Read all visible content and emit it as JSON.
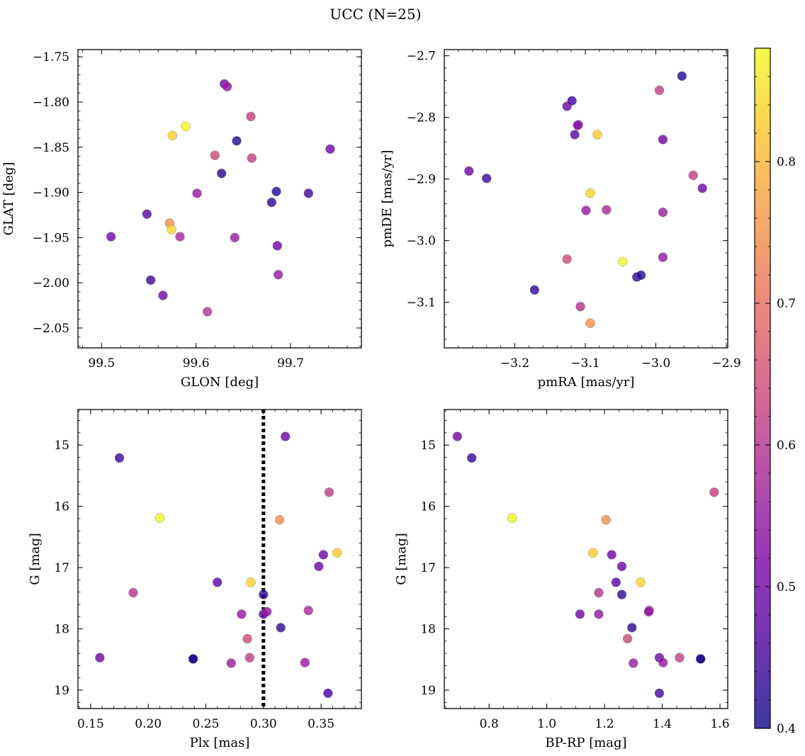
{
  "figure": {
    "title": "UCC (N=25)",
    "colormap": "plasma",
    "point_alpha": 0.8,
    "point_edge_color": "#888888"
  },
  "colorbar": {
    "range": [
      0.4,
      0.88
    ],
    "ticks": [
      0.4,
      0.5,
      0.6,
      0.7,
      0.8
    ],
    "tick_labels": [
      "0.4",
      "0.5",
      "0.6",
      "0.7",
      "0.8"
    ]
  },
  "stars": [
    {
      "glon": 99.51,
      "glat": -1.949,
      "pmra": -3.265,
      "pmde": -2.887,
      "plx": 0.158,
      "g": 18.47,
      "bprp": 1.39,
      "prob": 0.5
    },
    {
      "glon": 99.548,
      "glat": -1.924,
      "pmra": -3.115,
      "pmde": -2.828,
      "plx": 0.26,
      "g": 17.24,
      "bprp": 1.24,
      "prob": 0.47
    },
    {
      "glon": 99.552,
      "glat": -1.997,
      "pmra": -3.24,
      "pmde": -2.899,
      "plx": 0.175,
      "g": 15.21,
      "bprp": 0.74,
      "prob": 0.44
    },
    {
      "glon": 99.565,
      "glat": -2.014,
      "pmra": -3.126,
      "pmde": -2.782,
      "plx": 0.348,
      "g": 16.98,
      "bprp": 1.26,
      "prob": 0.5
    },
    {
      "glon": 99.572,
      "glat": -1.934,
      "pmra": -3.093,
      "pmde": -3.134,
      "plx": 0.314,
      "g": 16.22,
      "bprp": 1.205,
      "prob": 0.75
    },
    {
      "glon": 99.574,
      "glat": -1.941,
      "pmra": -3.093,
      "pmde": -2.923,
      "plx": 0.289,
      "g": 17.24,
      "bprp": 1.325,
      "prob": 0.84
    },
    {
      "glon": 99.575,
      "glat": -1.837,
      "pmra": -3.083,
      "pmde": -2.828,
      "plx": 0.364,
      "g": 16.76,
      "bprp": 1.16,
      "prob": 0.83
    },
    {
      "glon": 99.583,
      "glat": -1.949,
      "pmra": -3.07,
      "pmde": -2.95,
      "plx": 0.339,
      "g": 17.7,
      "bprp": 1.355,
      "prob": 0.58
    },
    {
      "glon": 99.589,
      "glat": -1.827,
      "pmra": -3.047,
      "pmde": -3.034,
      "plx": 0.21,
      "g": 16.19,
      "bprp": 0.88,
      "prob": 0.88
    },
    {
      "glon": 99.601,
      "glat": -1.901,
      "pmra": -3.099,
      "pmde": -2.951,
      "plx": 0.281,
      "g": 17.76,
      "bprp": 1.18,
      "prob": 0.55
    },
    {
      "glon": 99.612,
      "glat": -2.032,
      "pmra": -3.107,
      "pmde": -3.107,
      "plx": 0.187,
      "g": 17.41,
      "bprp": 1.18,
      "prob": 0.6
    },
    {
      "glon": 99.62,
      "glat": -1.859,
      "pmra": -3.126,
      "pmde": -3.03,
      "plx": 0.286,
      "g": 18.16,
      "bprp": 1.28,
      "prob": 0.64
    },
    {
      "glon": 99.627,
      "glat": -1.879,
      "pmra": -3.027,
      "pmde": -3.059,
      "plx": 0.3,
      "g": 17.44,
      "bprp": 1.26,
      "prob": 0.43
    },
    {
      "glon": 99.63,
      "glat": -1.78,
      "pmra": -3.11,
      "pmde": -2.812,
      "plx": 0.3,
      "g": 17.76,
      "bprp": 1.115,
      "prob": 0.5
    },
    {
      "glon": 99.633,
      "glat": -1.783,
      "pmra": -3.111,
      "pmde": -2.813,
      "plx": 0.303,
      "g": 17.72,
      "bprp": 1.353,
      "prob": 0.55
    },
    {
      "glon": 99.641,
      "glat": -1.95,
      "pmra": -2.99,
      "pmde": -2.954,
      "plx": 0.272,
      "g": 18.56,
      "bprp": 1.3,
      "prob": 0.56
    },
    {
      "glon": 99.643,
      "glat": -1.843,
      "pmra": -3.021,
      "pmde": -3.056,
      "plx": 0.239,
      "g": 18.49,
      "bprp": 1.533,
      "prob": 0.42
    },
    {
      "glon": 99.658,
      "glat": -1.816,
      "pmra": -2.995,
      "pmde": -2.756,
      "plx": 0.357,
      "g": 15.77,
      "bprp": 1.58,
      "prob": 0.62
    },
    {
      "glon": 99.659,
      "glat": -1.862,
      "pmra": -2.947,
      "pmde": -2.894,
      "plx": 0.288,
      "g": 18.47,
      "bprp": 1.46,
      "prob": 0.62
    },
    {
      "glon": 99.68,
      "glat": -1.911,
      "pmra": -3.172,
      "pmde": -3.08,
      "plx": 0.315,
      "g": 17.98,
      "bprp": 1.295,
      "prob": 0.43
    },
    {
      "glon": 99.685,
      "glat": -1.899,
      "pmra": -2.963,
      "pmde": -2.733,
      "plx": 0.239,
      "g": 18.49,
      "bprp": 1.533,
      "prob": 0.42
    },
    {
      "glon": 99.686,
      "glat": -1.959,
      "pmra": -2.99,
      "pmde": -2.836,
      "plx": 0.352,
      "g": 16.79,
      "bprp": 1.225,
      "prob": 0.5
    },
    {
      "glon": 99.687,
      "glat": -1.991,
      "pmra": -2.99,
      "pmde": -3.027,
      "plx": 0.336,
      "g": 18.55,
      "bprp": 1.403,
      "prob": 0.55
    },
    {
      "glon": 99.719,
      "glat": -1.901,
      "pmra": -3.119,
      "pmde": -2.773,
      "plx": 0.356,
      "g": 19.05,
      "bprp": 1.39,
      "prob": 0.45
    },
    {
      "glon": 99.742,
      "glat": -1.852,
      "pmra": -2.934,
      "pmde": -2.915,
      "plx": 0.319,
      "g": 14.86,
      "bprp": 0.69,
      "prob": 0.5
    }
  ],
  "chart_data": [
    {
      "type": "scatter",
      "title": "",
      "xlabel": "GLON [deg]",
      "ylabel": "GLAT [deg]",
      "x_key": "glon",
      "y_key": "glat",
      "xlim": [
        99.475,
        99.775
      ],
      "ylim": [
        -2.072,
        -1.742
      ],
      "y_inverted": false,
      "xticks": [
        99.5,
        99.6,
        99.7
      ],
      "xtick_labels": [
        "99.5",
        "99.6",
        "99.7"
      ],
      "xminor_step": 0.02,
      "yticks": [
        -1.75,
        -1.8,
        -1.85,
        -1.9,
        -1.95,
        -2.0,
        -2.05
      ],
      "ytick_labels": [
        "−1.75",
        "−1.80",
        "−1.85",
        "−1.90",
        "−1.95",
        "−2.00",
        "−2.05"
      ],
      "yminor_step": 0.01,
      "vline": null
    },
    {
      "type": "scatter",
      "title": "",
      "xlabel": "pmRA [mas/yr]",
      "ylabel": "pmDE [mas/yr]",
      "x_key": "pmra",
      "y_key": "pmde",
      "xlim": [
        -3.3,
        -2.898
      ],
      "ylim": [
        -3.174,
        -2.69
      ],
      "y_inverted": false,
      "xticks": [
        -3.2,
        -3.1,
        -3.0,
        -2.9
      ],
      "xtick_labels": [
        "−3.2",
        "−3.1",
        "−3.0",
        "−2.9"
      ],
      "xminor_step": 0.02,
      "yticks": [
        -2.7,
        -2.8,
        -2.9,
        -3.0,
        -3.1
      ],
      "ytick_labels": [
        "−2.7",
        "−2.8",
        "−2.9",
        "−3.0",
        "−3.1"
      ],
      "yminor_step": 0.02,
      "vline": null
    },
    {
      "type": "scatter",
      "title": "",
      "xlabel": "Plx [mas]",
      "ylabel": "G [mag]",
      "x_key": "plx",
      "y_key": "g",
      "xlim": [
        0.139,
        0.385
      ],
      "ylim": [
        19.3,
        14.42
      ],
      "y_inverted": true,
      "xticks": [
        0.15,
        0.2,
        0.25,
        0.3,
        0.35
      ],
      "xtick_labels": [
        "0.15",
        "0.20",
        "0.25",
        "0.30",
        "0.35"
      ],
      "xminor_step": 0.01,
      "yticks": [
        15,
        16,
        17,
        18,
        19
      ],
      "ytick_labels": [
        "15",
        "16",
        "17",
        "18",
        "19"
      ],
      "yminor_step": 0.2,
      "vline": {
        "x": 0.3,
        "style": "dotted"
      }
    },
    {
      "type": "scatter",
      "title": "",
      "xlabel": "BP-RP [mag]",
      "ylabel": "G [mag]",
      "x_key": "bprp",
      "y_key": "g",
      "xlim": [
        0.645,
        1.627
      ],
      "ylim": [
        19.3,
        14.42
      ],
      "y_inverted": true,
      "xticks": [
        0.8,
        1.0,
        1.2,
        1.4,
        1.6
      ],
      "xtick_labels": [
        "0.8",
        "1.0",
        "1.2",
        "1.4",
        "1.6"
      ],
      "xminor_step": 0.05,
      "yticks": [
        15,
        16,
        17,
        18,
        19
      ],
      "ytick_labels": [
        "15",
        "16",
        "17",
        "18",
        "19"
      ],
      "yminor_step": 0.2,
      "vline": null
    }
  ]
}
